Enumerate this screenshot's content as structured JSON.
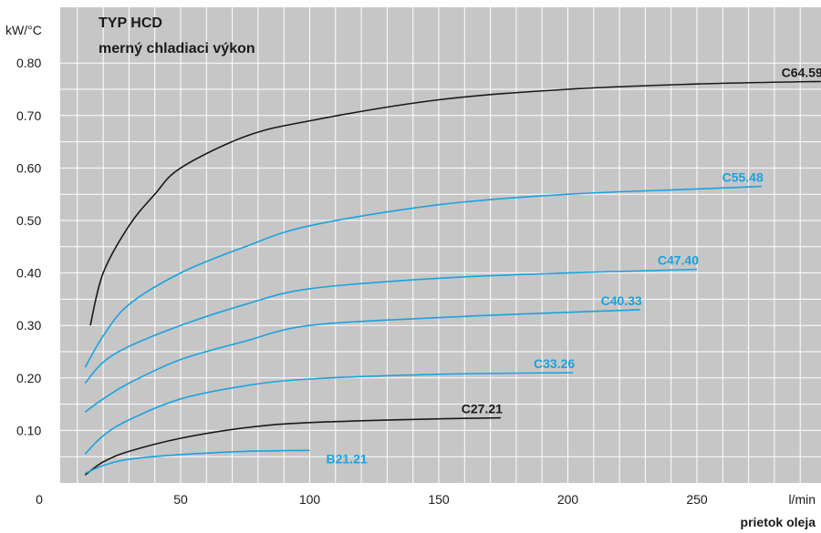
{
  "chart_data": {
    "type": "line",
    "title": "TYP HCD",
    "subtitle": "merný chladiaci výkon",
    "ylabel": "kW/°C",
    "xlabel": "prietok oleja",
    "xunit": "l/min",
    "xlim": [
      0,
      300
    ],
    "ylim": [
      0,
      0.85
    ],
    "grid": true,
    "x_ticks": [
      0,
      50,
      100,
      150,
      200,
      250
    ],
    "x_tick_labels": [
      "0",
      "50",
      "100",
      "150",
      "200",
      "250"
    ],
    "y_ticks": [
      0.1,
      0.2,
      0.3,
      0.4,
      0.5,
      0.6,
      0.7,
      0.8
    ],
    "y_tick_labels": [
      "0.10",
      "0.20",
      "0.30",
      "0.40",
      "0.50",
      "0.60",
      "0.70",
      "0.80"
    ],
    "colors": {
      "black": "#1a1a1a",
      "blue": "#1aa3df",
      "plot_bg": "#c6c6c6",
      "grid": "#ffffff"
    },
    "series": [
      {
        "name": "C64.59",
        "color": "#1a1a1a",
        "x": [
          15,
          20,
          30,
          40,
          50,
          75,
          100,
          150,
          200,
          250,
          298
        ],
        "y": [
          0.3,
          0.4,
          0.49,
          0.55,
          0.6,
          0.66,
          0.69,
          0.73,
          0.75,
          0.76,
          0.765
        ]
      },
      {
        "name": "C55.48",
        "color": "#1aa3df",
        "x": [
          13,
          20,
          30,
          50,
          75,
          100,
          150,
          200,
          250,
          275
        ],
        "y": [
          0.22,
          0.28,
          0.34,
          0.4,
          0.45,
          0.49,
          0.53,
          0.55,
          0.56,
          0.565
        ]
      },
      {
        "name": "C47.40",
        "color": "#1aa3df",
        "x": [
          13,
          20,
          30,
          50,
          75,
          100,
          150,
          200,
          250
        ],
        "y": [
          0.19,
          0.23,
          0.26,
          0.3,
          0.34,
          0.37,
          0.39,
          0.4,
          0.407
        ]
      },
      {
        "name": "C40.33",
        "color": "#1aa3df",
        "x": [
          13,
          20,
          30,
          50,
          75,
          100,
          150,
          200,
          228
        ],
        "y": [
          0.135,
          0.16,
          0.19,
          0.235,
          0.27,
          0.3,
          0.315,
          0.325,
          0.33
        ]
      },
      {
        "name": "C33.26",
        "color": "#1aa3df",
        "x": [
          13,
          20,
          30,
          50,
          75,
          100,
          150,
          202
        ],
        "y": [
          0.055,
          0.09,
          0.12,
          0.16,
          0.185,
          0.198,
          0.207,
          0.21
        ]
      },
      {
        "name": "C27.21",
        "color": "#1a1a1a",
        "x": [
          13,
          20,
          30,
          50,
          75,
          100,
          150,
          174
        ],
        "y": [
          0.015,
          0.04,
          0.06,
          0.085,
          0.105,
          0.115,
          0.122,
          0.124
        ]
      },
      {
        "name": "B21.21",
        "color": "#1aa3df",
        "x": [
          13,
          20,
          30,
          50,
          75,
          100
        ],
        "y": [
          0.018,
          0.033,
          0.045,
          0.054,
          0.06,
          0.062
        ]
      }
    ]
  }
}
